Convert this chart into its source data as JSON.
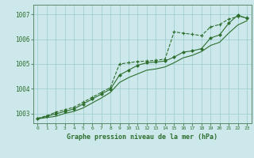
{
  "title": "Graphe pression niveau de la mer (hPa)",
  "background_color": "#cce8ea",
  "grid_color": "#99cccc",
  "line_color": "#2d6e2d",
  "xlim": [
    -0.5,
    23.5
  ],
  "ylim": [
    1002.6,
    1007.4
  ],
  "yticks": [
    1003,
    1004,
    1005,
    1006,
    1007
  ],
  "xticks": [
    0,
    1,
    2,
    3,
    4,
    5,
    6,
    7,
    8,
    9,
    10,
    11,
    12,
    13,
    14,
    15,
    16,
    17,
    18,
    19,
    20,
    21,
    22,
    23
  ],
  "series1": [
    1002.8,
    1002.9,
    1003.05,
    1003.15,
    1003.25,
    1003.45,
    1003.65,
    1003.85,
    1004.05,
    1005.0,
    1005.05,
    1005.1,
    1005.12,
    1005.15,
    1005.2,
    1006.3,
    1006.25,
    1006.2,
    1006.15,
    1006.5,
    1006.6,
    1006.82,
    1006.92,
    1006.88
  ],
  "series2": [
    1002.78,
    1002.88,
    1002.98,
    1003.08,
    1003.18,
    1003.38,
    1003.58,
    1003.78,
    1003.98,
    1004.55,
    1004.75,
    1004.95,
    1005.05,
    1005.08,
    1005.12,
    1005.28,
    1005.48,
    1005.53,
    1005.62,
    1006.05,
    1006.18,
    1006.65,
    1006.98,
    1006.85
  ],
  "series3": [
    1002.78,
    1002.83,
    1002.88,
    1003.0,
    1003.08,
    1003.22,
    1003.42,
    1003.62,
    1003.85,
    1004.25,
    1004.45,
    1004.6,
    1004.75,
    1004.8,
    1004.88,
    1005.05,
    1005.25,
    1005.35,
    1005.5,
    1005.75,
    1005.88,
    1006.25,
    1006.58,
    1006.75
  ]
}
